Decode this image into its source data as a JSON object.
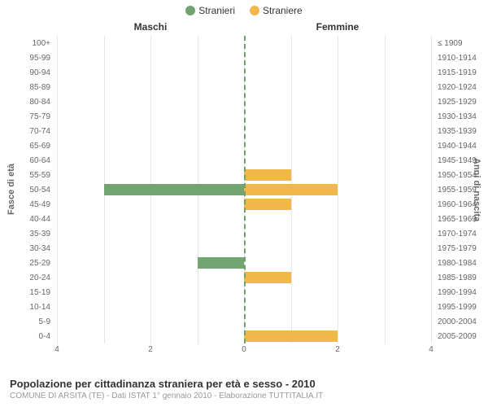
{
  "chart": {
    "type": "population-pyramid",
    "legend": {
      "items": [
        {
          "label": "Stranieri",
          "color": "#71a471"
        },
        {
          "label": "Straniere",
          "color": "#f0b84a"
        }
      ]
    },
    "sex_labels": {
      "left": "Maschi",
      "right": "Femmine"
    },
    "y_axis_left_title": "Fasce di età",
    "y_axis_right_title": "Anni di nascita",
    "x_axis": {
      "max": 4,
      "ticks_left": [
        4,
        2,
        0
      ],
      "ticks_right": [
        0,
        2,
        4
      ]
    },
    "grid_color": "#e6e6e6",
    "center_line_color": "#70a070",
    "background_color": "#ffffff",
    "bar_color_left": "#71a471",
    "bar_color_right": "#f0b84a",
    "rows": [
      {
        "age": "100+",
        "birth": "≤ 1909",
        "m": 0,
        "f": 0
      },
      {
        "age": "95-99",
        "birth": "1910-1914",
        "m": 0,
        "f": 0
      },
      {
        "age": "90-94",
        "birth": "1915-1919",
        "m": 0,
        "f": 0
      },
      {
        "age": "85-89",
        "birth": "1920-1924",
        "m": 0,
        "f": 0
      },
      {
        "age": "80-84",
        "birth": "1925-1929",
        "m": 0,
        "f": 0
      },
      {
        "age": "75-79",
        "birth": "1930-1934",
        "m": 0,
        "f": 0
      },
      {
        "age": "70-74",
        "birth": "1935-1939",
        "m": 0,
        "f": 0
      },
      {
        "age": "65-69",
        "birth": "1940-1944",
        "m": 0,
        "f": 0
      },
      {
        "age": "60-64",
        "birth": "1945-1949",
        "m": 0,
        "f": 0
      },
      {
        "age": "55-59",
        "birth": "1950-1954",
        "m": 0,
        "f": 1
      },
      {
        "age": "50-54",
        "birth": "1955-1959",
        "m": 3,
        "f": 2
      },
      {
        "age": "45-49",
        "birth": "1960-1964",
        "m": 0,
        "f": 1
      },
      {
        "age": "40-44",
        "birth": "1965-1969",
        "m": 0,
        "f": 0
      },
      {
        "age": "35-39",
        "birth": "1970-1974",
        "m": 0,
        "f": 0
      },
      {
        "age": "30-34",
        "birth": "1975-1979",
        "m": 0,
        "f": 0
      },
      {
        "age": "25-29",
        "birth": "1980-1984",
        "m": 1,
        "f": 0
      },
      {
        "age": "20-24",
        "birth": "1985-1989",
        "m": 0,
        "f": 1
      },
      {
        "age": "15-19",
        "birth": "1990-1994",
        "m": 0,
        "f": 0
      },
      {
        "age": "10-14",
        "birth": "1995-1999",
        "m": 0,
        "f": 0
      },
      {
        "age": "5-9",
        "birth": "2000-2004",
        "m": 0,
        "f": 0
      },
      {
        "age": "0-4",
        "birth": "2005-2009",
        "m": 0,
        "f": 2
      }
    ],
    "caption": {
      "title": "Popolazione per cittadinanza straniera per età e sesso - 2010",
      "subtitle": "COMUNE DI ARSITA (TE) - Dati ISTAT 1° gennaio 2010 - Elaborazione TUTTITALIA.IT"
    }
  }
}
